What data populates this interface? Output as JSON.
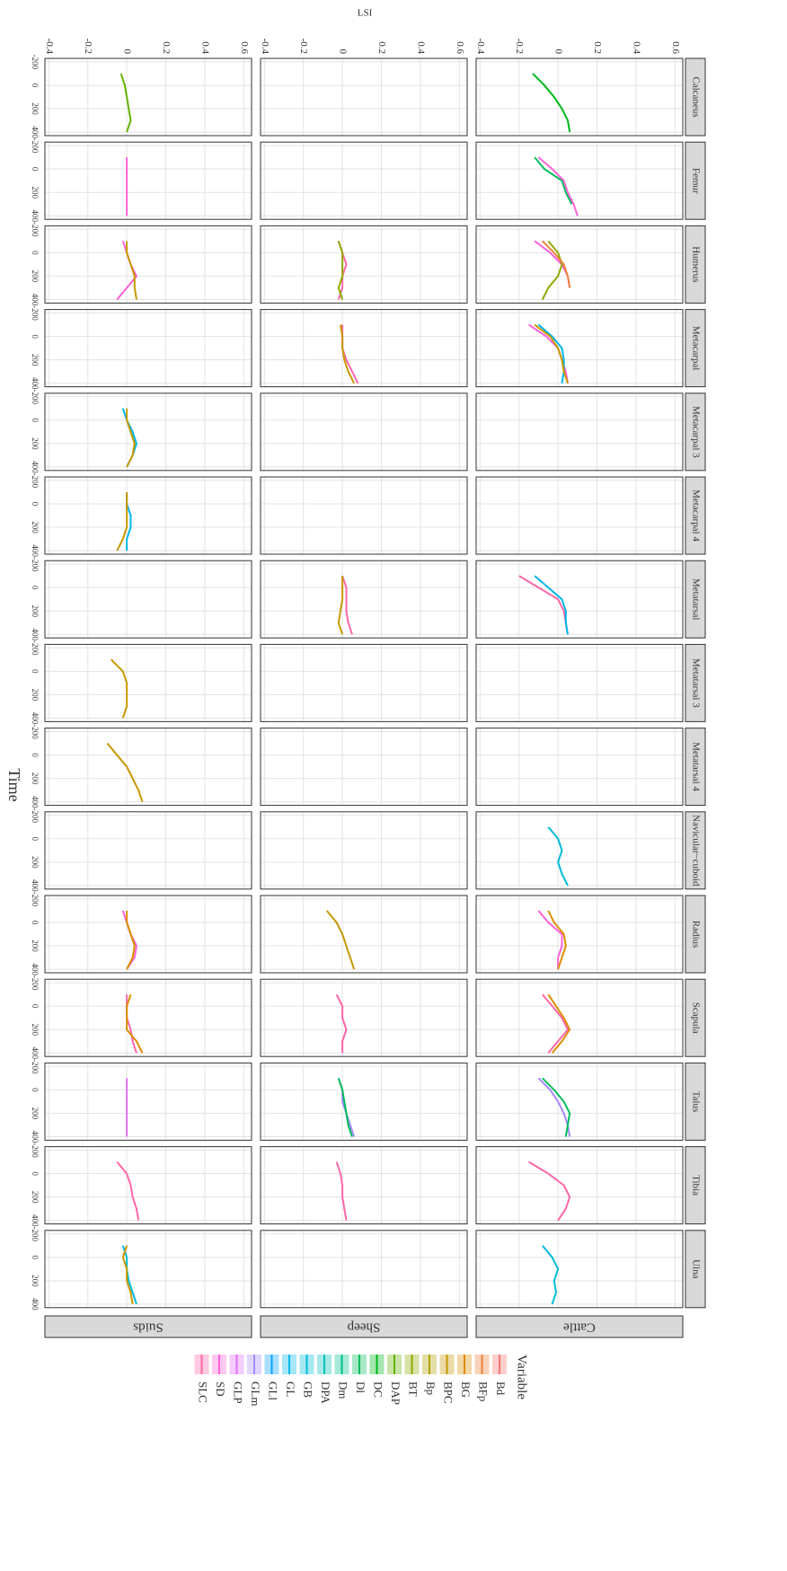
{
  "chart_data": {
    "type": "line",
    "x_label": "Time",
    "y_label": "LSI",
    "rows": [
      "Cattle",
      "Sheep",
      "Suids"
    ],
    "columns": [
      "Calcaneus",
      "Femur",
      "Humerus",
      "Metacarpal",
      "Metacarpal 3",
      "Metacarpal 4",
      "Metatarsal",
      "Metatarsal 3",
      "Metatarsal 4",
      "Navicular−cuboid",
      "Radius",
      "Scapula",
      "Talus",
      "Tibia",
      "Ulna"
    ],
    "x": [
      -200,
      -100,
      0,
      100,
      200,
      300,
      400
    ],
    "xlim": [
      -230,
      430
    ],
    "xticks": [
      -200,
      0,
      200,
      400
    ],
    "ylim": [
      -0.42,
      0.64
    ],
    "yticks": [
      -0.4,
      -0.2,
      0,
      0.2,
      0.4,
      0.6
    ],
    "grid": true,
    "legend": {
      "title": "Variable",
      "items": [
        {
          "name": "Bd",
          "color": "#F8766D"
        },
        {
          "name": "BFp",
          "color": "#EC8239"
        },
        {
          "name": "BG",
          "color": "#DB8E00"
        },
        {
          "name": "BPC",
          "color": "#C79800"
        },
        {
          "name": "Bp",
          "color": "#AEA200"
        },
        {
          "name": "BT",
          "color": "#8FAA00"
        },
        {
          "name": "DAP",
          "color": "#64B200"
        },
        {
          "name": "DC",
          "color": "#00B81B"
        },
        {
          "name": "Dl",
          "color": "#00BD5C"
        },
        {
          "name": "Dm",
          "color": "#00C08D"
        },
        {
          "name": "DPA",
          "color": "#00C0B8"
        },
        {
          "name": "GB",
          "color": "#00BCD8"
        },
        {
          "name": "GL",
          "color": "#00B6EB"
        },
        {
          "name": "GLl",
          "color": "#06A4FF"
        },
        {
          "name": "GLm",
          "color": "#A58AFF"
        },
        {
          "name": "GLP",
          "color": "#DF70F8"
        },
        {
          "name": "SD",
          "color": "#FB61D7"
        },
        {
          "name": "SLC",
          "color": "#FF66A8"
        }
      ]
    },
    "panels": [
      [
        [
          {
            "name": "DC",
            "values": [
              null,
              -0.13,
              -0.07,
              -0.02,
              0.02,
              0.05,
              0.06
            ]
          }
        ],
        [
          {
            "name": "Dl",
            "values": [
              null,
              -0.12,
              -0.07,
              0.02,
              0.04,
              0.07,
              null
            ]
          },
          {
            "name": "SD",
            "values": [
              null,
              -0.1,
              -0.03,
              0.03,
              0.05,
              0.08,
              0.1
            ]
          }
        ],
        [
          {
            "name": "SD",
            "values": [
              null,
              -0.12,
              -0.04,
              0.02,
              0.05,
              0.06,
              null
            ]
          },
          {
            "name": "BT",
            "values": [
              null,
              -0.05,
              0,
              0.02,
              0,
              -0.05,
              -0.08
            ]
          },
          {
            "name": "BFp",
            "values": [
              null,
              -0.08,
              -0.02,
              0.03,
              0.05,
              0.06,
              null
            ]
          }
        ],
        [
          {
            "name": "SD",
            "values": [
              null,
              -0.15,
              -0.06,
              0,
              0.02,
              0.04,
              0.05
            ]
          },
          {
            "name": "GL",
            "values": [
              null,
              -0.1,
              -0.03,
              0.02,
              0.03,
              0.03,
              0.02
            ]
          },
          {
            "name": "BPC",
            "values": [
              null,
              -0.12,
              -0.04,
              0,
              0.02,
              0.03,
              0.05
            ]
          }
        ],
        [],
        [],
        [
          {
            "name": "SLC",
            "values": [
              null,
              -0.2,
              -0.1,
              0,
              0.03,
              0.04,
              0.05
            ]
          },
          {
            "name": "GL",
            "values": [
              null,
              -0.12,
              -0.05,
              0.02,
              0.04,
              0.04,
              0.05
            ]
          }
        ],
        [],
        [],
        [
          {
            "name": "GB",
            "values": [
              null,
              -0.05,
              0,
              0.02,
              0,
              0.02,
              0.05
            ]
          }
        ],
        [
          {
            "name": "SD",
            "values": [
              null,
              -0.1,
              -0.05,
              0.02,
              0.02,
              0,
              0
            ]
          },
          {
            "name": "BG",
            "values": [
              null,
              -0.05,
              -0.02,
              0.03,
              0.04,
              0.02,
              0
            ]
          }
        ],
        [
          {
            "name": "SLC",
            "values": [
              null,
              -0.08,
              -0.03,
              0.02,
              0.05,
              0,
              -0.05
            ]
          },
          {
            "name": "BG",
            "values": [
              null,
              -0.05,
              -0.01,
              0.03,
              0.06,
              0.02,
              -0.03
            ]
          }
        ],
        [
          {
            "name": "GLm",
            "values": [
              null,
              -0.1,
              -0.04,
              0,
              0.03,
              0.05,
              0.06
            ]
          },
          {
            "name": "Dl",
            "values": [
              null,
              -0.08,
              -0.02,
              0.03,
              0.06,
              0.05,
              0.04
            ]
          }
        ],
        [
          {
            "name": "SLC",
            "values": [
              null,
              -0.15,
              -0.05,
              0.03,
              0.06,
              0.04,
              0
            ]
          }
        ],
        [
          {
            "name": "GB",
            "values": [
              null,
              -0.08,
              -0.03,
              0,
              -0.02,
              -0.01,
              -0.03
            ]
          }
        ]
      ],
      [
        [],
        [],
        [
          {
            "name": "SLC",
            "values": [
              null,
              -0.02,
              0,
              0.02,
              0,
              0,
              -0.02
            ]
          },
          {
            "name": "BT",
            "values": [
              null,
              -0.02,
              0,
              0,
              0,
              -0.02,
              0
            ]
          }
        ],
        [
          {
            "name": "SLC",
            "values": [
              null,
              0,
              0,
              0,
              0.02,
              0.05,
              0.08
            ]
          },
          {
            "name": "BPC",
            "values": [
              null,
              -0.01,
              0,
              0,
              0.01,
              0.03,
              0.06
            ]
          }
        ],
        [],
        [],
        [
          {
            "name": "SLC",
            "values": [
              null,
              0,
              0.02,
              0.02,
              0.02,
              0.03,
              0.05
            ]
          },
          {
            "name": "BPC",
            "values": [
              null,
              0,
              0,
              0,
              -0.01,
              -0.02,
              0
            ]
          }
        ],
        [],
        [],
        [],
        [
          {
            "name": "BPC",
            "values": [
              null,
              -0.08,
              -0.03,
              0,
              0.02,
              0.04,
              0.06
            ]
          }
        ],
        [
          {
            "name": "SLC",
            "values": [
              null,
              -0.03,
              0,
              0,
              0.02,
              0,
              0
            ]
          }
        ],
        [
          {
            "name": "GLm",
            "values": [
              null,
              -0.02,
              0,
              0,
              0.02,
              0.04,
              0.06
            ]
          },
          {
            "name": "Dl",
            "values": [
              null,
              -0.02,
              0,
              0.01,
              0.02,
              0.03,
              0.05
            ]
          }
        ],
        [
          {
            "name": "SLC",
            "values": [
              null,
              -0.03,
              -0.01,
              0,
              0,
              0.01,
              0.02
            ]
          }
        ],
        []
      ],
      [
        [
          {
            "name": "DAP",
            "values": [
              null,
              -0.03,
              -0.01,
              0,
              0.01,
              0.02,
              0
            ]
          }
        ],
        [
          {
            "name": "SD",
            "values": [
              null,
              0,
              0,
              0,
              0,
              0,
              0
            ]
          }
        ],
        [
          {
            "name": "SD",
            "values": [
              null,
              -0.02,
              0,
              0.02,
              0.05,
              0,
              -0.05
            ]
          },
          {
            "name": "BPC",
            "values": [
              null,
              0,
              0,
              0.02,
              0.04,
              0.04,
              0.05
            ]
          }
        ],
        [],
        [
          {
            "name": "GL",
            "values": [
              null,
              -0.02,
              0,
              0.03,
              0.05,
              0.03,
              0
            ]
          },
          {
            "name": "BPC",
            "values": [
              null,
              0,
              0,
              0.02,
              0.04,
              0.03,
              0
            ]
          }
        ],
        [
          {
            "name": "GL",
            "values": [
              null,
              0,
              0,
              0.02,
              0.02,
              0,
              0
            ]
          },
          {
            "name": "BPC",
            "values": [
              null,
              0,
              0,
              0,
              0,
              -0.02,
              -0.05
            ]
          }
        ],
        [],
        [
          {
            "name": "BPC",
            "values": [
              null,
              -0.08,
              -0.02,
              0,
              0,
              0,
              -0.02
            ]
          }
        ],
        [
          {
            "name": "BPC",
            "values": [
              null,
              -0.1,
              -0.05,
              0,
              0.03,
              0.06,
              0.08
            ]
          }
        ],
        [],
        [
          {
            "name": "SD",
            "values": [
              null,
              -0.02,
              0,
              0.02,
              0.05,
              0.04,
              0
            ]
          },
          {
            "name": "BG",
            "values": [
              null,
              0,
              0,
              0.02,
              0.04,
              0.03,
              0
            ]
          }
        ],
        [
          {
            "name": "SLC",
            "values": [
              null,
              0,
              0,
              0,
              0.02,
              0.03,
              0.05
            ]
          },
          {
            "name": "BG",
            "values": [
              null,
              0.02,
              0,
              0,
              0,
              0.05,
              0.08
            ]
          }
        ],
        [
          {
            "name": "GLP",
            "values": [
              null,
              0,
              0,
              0,
              0,
              0,
              0
            ]
          }
        ],
        [
          {
            "name": "SLC",
            "values": [
              null,
              -0.05,
              0,
              0.02,
              0.03,
              0.05,
              0.06
            ]
          }
        ],
        [
          {
            "name": "GB",
            "values": [
              null,
              -0.02,
              0,
              0,
              0.01,
              0.03,
              0.05
            ]
          },
          {
            "name": "BPC",
            "values": [
              null,
              0,
              -0.02,
              0,
              0,
              0.02,
              0.03
            ]
          }
        ]
      ]
    ]
  }
}
